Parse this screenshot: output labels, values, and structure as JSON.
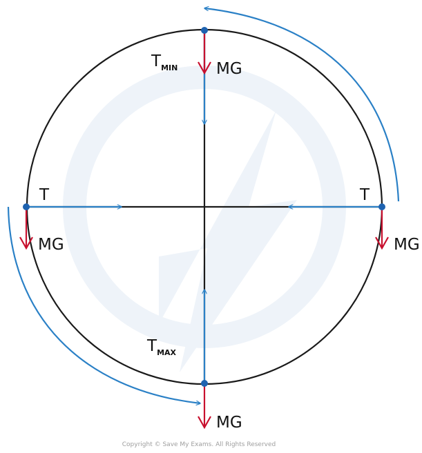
{
  "diagram": {
    "labels": {
      "top_tension_main": "T",
      "top_tension_sub": "MIN",
      "bottom_tension_main": "T",
      "bottom_tension_sub": "MAX",
      "left_tension": "T",
      "right_tension": "T",
      "weight_top": "MG",
      "weight_left": "MG",
      "weight_right": "MG",
      "weight_bottom": "MG"
    },
    "copyright": "Copyright © Save My Exams. All Rights Reserved",
    "colors": {
      "circle": "#1a1a1a",
      "tension_arrow": "#2a80c6",
      "weight_arrow": "#c8102e",
      "rotation_arrow": "#2a80c6",
      "point": "#1f63b0",
      "watermark": "#eef3f9"
    }
  }
}
